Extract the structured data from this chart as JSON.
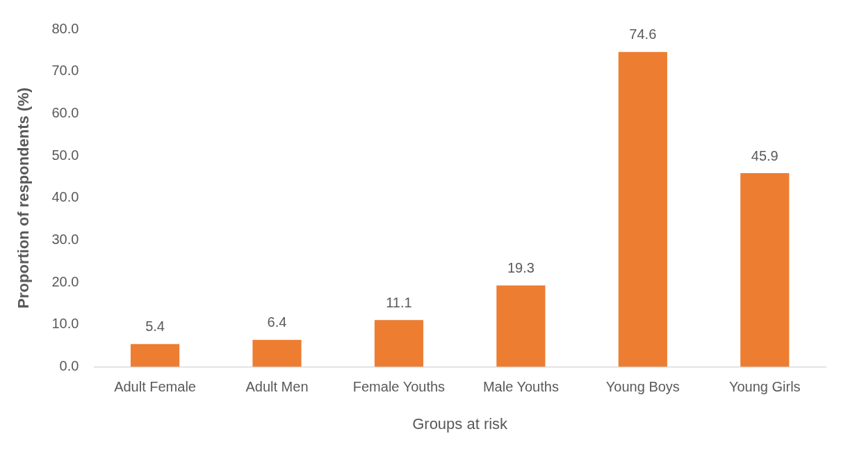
{
  "chart_data": {
    "type": "bar",
    "xlabel": "Groups at risk",
    "ylabel": "Proportion of respondents (%)",
    "categories": [
      "Adult Female",
      "Adult Men",
      "Female Youths",
      "Male Youths",
      "Young Boys",
      "Young Girls"
    ],
    "values": [
      5.4,
      6.4,
      11.1,
      19.3,
      74.6,
      45.9
    ],
    "color": "#ed7d31",
    "ylim": [
      0,
      80
    ],
    "yticks": [
      {
        "value": 0,
        "label": "0.0"
      },
      {
        "value": 10,
        "label": "10.0"
      },
      {
        "value": 20,
        "label": "20.0"
      },
      {
        "value": 30,
        "label": "30.0"
      },
      {
        "value": 40,
        "label": "40.0"
      },
      {
        "value": 50,
        "label": "50.0"
      },
      {
        "value": 60,
        "label": "60.0"
      },
      {
        "value": 70,
        "label": "70.0"
      },
      {
        "value": 80,
        "label": "80.0"
      }
    ],
    "data_labels": true,
    "grid": false,
    "legend": false
  }
}
